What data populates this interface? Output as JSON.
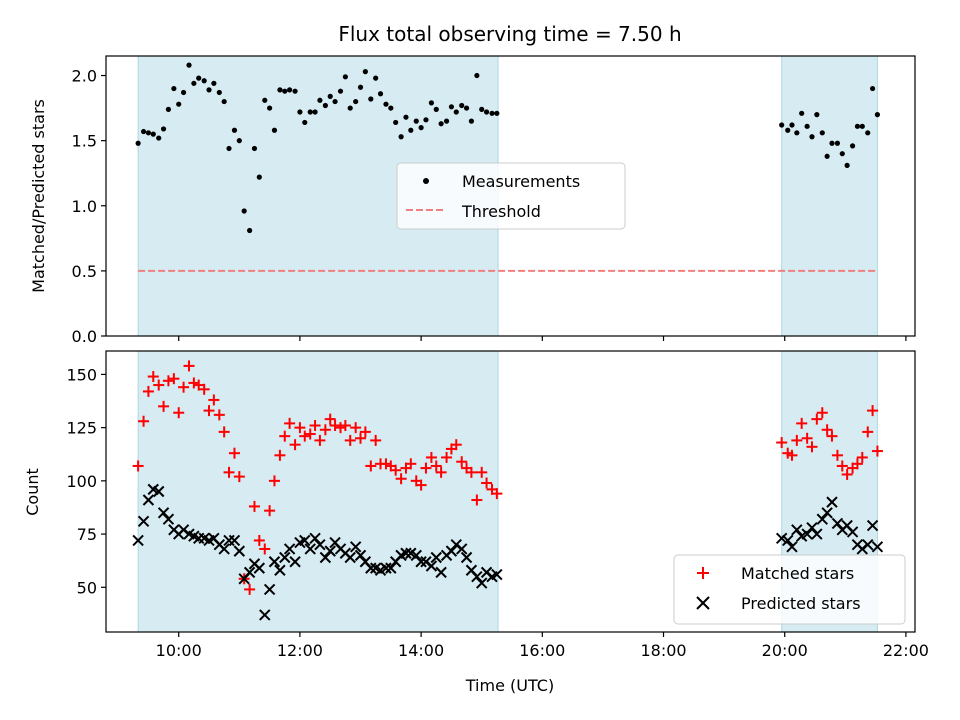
{
  "chart_data": [
    {
      "type": "scatter",
      "title": "Flux total observing time = 7.50 h",
      "xlabel": "",
      "ylabel": "Matched/Predicted stars",
      "xlim": [
        8.8,
        22.15
      ],
      "ylim": [
        0,
        2.15
      ],
      "yticks": [
        0.0,
        0.5,
        1.0,
        1.5,
        2.0
      ],
      "ytick_labels": [
        "0.0",
        "0.5",
        "1.0",
        "1.5",
        "2.0"
      ],
      "grid": false,
      "legend_position": "center",
      "shaded_intervals": [
        [
          9.33,
          15.27
        ],
        [
          19.95,
          21.53
        ]
      ],
      "shade_color": "#add8e6",
      "threshold": {
        "name": "Threshold",
        "value": 0.5,
        "x_range": [
          9.33,
          21.53
        ],
        "color": "#f08080"
      },
      "series": [
        {
          "name": "Measurements",
          "marker": "dot",
          "color": "#000000",
          "x": [
            9.33,
            9.42,
            9.5,
            9.58,
            9.67,
            9.75,
            9.83,
            9.92,
            10.0,
            10.08,
            10.17,
            10.25,
            10.33,
            10.42,
            10.5,
            10.58,
            10.67,
            10.75,
            10.83,
            10.92,
            11.0,
            11.08,
            11.17,
            11.25,
            11.33,
            11.42,
            11.5,
            11.58,
            11.67,
            11.75,
            11.83,
            11.92,
            12.0,
            12.08,
            12.17,
            12.25,
            12.33,
            12.42,
            12.5,
            12.58,
            12.67,
            12.75,
            12.83,
            12.92,
            13.0,
            13.08,
            13.17,
            13.25,
            13.33,
            13.42,
            13.5,
            13.58,
            13.67,
            13.75,
            13.83,
            13.92,
            14.0,
            14.08,
            14.17,
            14.25,
            14.33,
            14.42,
            14.5,
            14.58,
            14.67,
            14.75,
            14.83,
            14.92,
            15.0,
            15.08,
            15.17,
            15.25,
            19.95,
            20.05,
            20.12,
            20.2,
            20.28,
            20.37,
            20.45,
            20.53,
            20.62,
            20.7,
            20.78,
            20.87,
            20.95,
            21.03,
            21.12,
            21.2,
            21.28,
            21.37,
            21.45,
            21.53
          ],
          "y": [
            1.48,
            1.57,
            1.56,
            1.55,
            1.52,
            1.59,
            1.74,
            1.9,
            1.78,
            1.87,
            2.08,
            1.94,
            1.98,
            1.96,
            1.89,
            1.94,
            1.87,
            1.8,
            1.44,
            1.58,
            1.5,
            0.96,
            0.81,
            1.44,
            1.22,
            1.81,
            1.75,
            1.58,
            1.89,
            1.88,
            1.89,
            1.88,
            1.72,
            1.64,
            1.72,
            1.72,
            1.81,
            1.77,
            1.84,
            1.8,
            1.88,
            1.99,
            1.75,
            1.8,
            1.91,
            2.03,
            1.82,
            1.98,
            1.86,
            1.78,
            1.75,
            1.64,
            1.53,
            1.68,
            1.58,
            1.65,
            1.6,
            1.66,
            1.79,
            1.74,
            1.63,
            1.65,
            1.76,
            1.72,
            1.77,
            1.75,
            1.65,
            2.0,
            1.74,
            1.72,
            1.71,
            1.71,
            1.62,
            1.58,
            1.62,
            1.56,
            1.71,
            1.61,
            1.53,
            1.7,
            1.56,
            1.38,
            1.48,
            1.48,
            1.4,
            1.31,
            1.46,
            1.61,
            1.61,
            1.56,
            1.9,
            1.7
          ]
        }
      ]
    },
    {
      "type": "scatter",
      "title": "",
      "xlabel": "Time (UTC)",
      "ylabel": "Count",
      "xlim": [
        8.8,
        22.15
      ],
      "ylim": [
        29,
        161
      ],
      "yticks": [
        50,
        75,
        100,
        125,
        150
      ],
      "ytick_labels": [
        "50",
        "75",
        "100",
        "125",
        "150"
      ],
      "xticks": [
        10,
        12,
        14,
        16,
        18,
        20,
        22
      ],
      "xtick_labels": [
        "10:00",
        "12:00",
        "14:00",
        "16:00",
        "18:00",
        "20:00",
        "22:00"
      ],
      "grid": false,
      "legend_position": "lower right",
      "shaded_intervals": [
        [
          9.33,
          15.27
        ],
        [
          19.95,
          21.53
        ]
      ],
      "shade_color": "#add8e6",
      "series": [
        {
          "name": "Matched stars",
          "marker": "plus",
          "color": "#ff0000",
          "x": [
            9.33,
            9.42,
            9.5,
            9.58,
            9.67,
            9.75,
            9.83,
            9.92,
            10.0,
            10.08,
            10.17,
            10.25,
            10.33,
            10.42,
            10.5,
            10.58,
            10.67,
            10.75,
            10.83,
            10.92,
            11.0,
            11.08,
            11.17,
            11.25,
            11.33,
            11.42,
            11.5,
            11.58,
            11.67,
            11.75,
            11.83,
            11.92,
            12.0,
            12.08,
            12.17,
            12.25,
            12.33,
            12.42,
            12.5,
            12.58,
            12.67,
            12.75,
            12.83,
            12.92,
            13.0,
            13.08,
            13.17,
            13.25,
            13.33,
            13.42,
            13.5,
            13.58,
            13.67,
            13.75,
            13.83,
            13.92,
            14.0,
            14.08,
            14.17,
            14.25,
            14.33,
            14.42,
            14.5,
            14.58,
            14.67,
            14.75,
            14.83,
            14.92,
            15.0,
            15.08,
            15.17,
            15.25,
            19.95,
            20.05,
            20.12,
            20.2,
            20.28,
            20.37,
            20.45,
            20.53,
            20.62,
            20.7,
            20.78,
            20.87,
            20.95,
            21.03,
            21.12,
            21.2,
            21.28,
            21.37,
            21.45,
            21.53
          ],
          "y": [
            107,
            128,
            142,
            149,
            145,
            135,
            147,
            148,
            132,
            144,
            154,
            146,
            145,
            143,
            133,
            138,
            131,
            123,
            104,
            113,
            102,
            54,
            49,
            88,
            72,
            68,
            86,
            100,
            112,
            121,
            127,
            117,
            125,
            121,
            122,
            126,
            119,
            124,
            129,
            126,
            125,
            126,
            119,
            125,
            120,
            123,
            107,
            119,
            108,
            108,
            107,
            105,
            101,
            106,
            108,
            100,
            98,
            106,
            111,
            107,
            104,
            111,
            115,
            117,
            109,
            106,
            104,
            91,
            104,
            99,
            96,
            94,
            118,
            113,
            112,
            119,
            127,
            120,
            116,
            129,
            132,
            124,
            121,
            112,
            107,
            103,
            106,
            108,
            111,
            123,
            133,
            114
          ]
        },
        {
          "name": "Predicted stars",
          "marker": "x",
          "color": "#000000",
          "x": [
            9.33,
            9.42,
            9.5,
            9.58,
            9.67,
            9.75,
            9.83,
            9.92,
            10.0,
            10.08,
            10.17,
            10.25,
            10.33,
            10.42,
            10.5,
            10.58,
            10.67,
            10.75,
            10.83,
            10.92,
            11.0,
            11.08,
            11.17,
            11.25,
            11.33,
            11.42,
            11.5,
            11.58,
            11.67,
            11.75,
            11.83,
            11.92,
            12.0,
            12.08,
            12.17,
            12.25,
            12.33,
            12.42,
            12.5,
            12.58,
            12.67,
            12.75,
            12.83,
            12.92,
            13.0,
            13.08,
            13.17,
            13.25,
            13.33,
            13.42,
            13.5,
            13.58,
            13.67,
            13.75,
            13.83,
            13.92,
            14.0,
            14.08,
            14.17,
            14.25,
            14.33,
            14.42,
            14.5,
            14.58,
            14.67,
            14.75,
            14.83,
            14.92,
            15.0,
            15.08,
            15.17,
            15.25,
            19.95,
            20.05,
            20.12,
            20.2,
            20.28,
            20.37,
            20.45,
            20.53,
            20.62,
            20.7,
            20.78,
            20.87,
            20.95,
            21.03,
            21.12,
            21.2,
            21.28,
            21.37,
            21.45,
            21.53
          ],
          "y": [
            72,
            81,
            91,
            96,
            95,
            85,
            82,
            77,
            75,
            77,
            75,
            74,
            73,
            73,
            72,
            73,
            70,
            68,
            72,
            72,
            67,
            54,
            57,
            61,
            59,
            37,
            49,
            62,
            58,
            64,
            68,
            62,
            71,
            72,
            68,
            73,
            70,
            64,
            67,
            71,
            68,
            66,
            64,
            69,
            65,
            62,
            59,
            59,
            58,
            59,
            59,
            62,
            65,
            66,
            66,
            65,
            62,
            62,
            60,
            64,
            57,
            65,
            67,
            70,
            68,
            64,
            58,
            55,
            52,
            57,
            55,
            56,
            73,
            72,
            69,
            77,
            74,
            75,
            78,
            75,
            82,
            85,
            90,
            80,
            77,
            79,
            76,
            70,
            68,
            70,
            79,
            69
          ]
        }
      ]
    }
  ]
}
